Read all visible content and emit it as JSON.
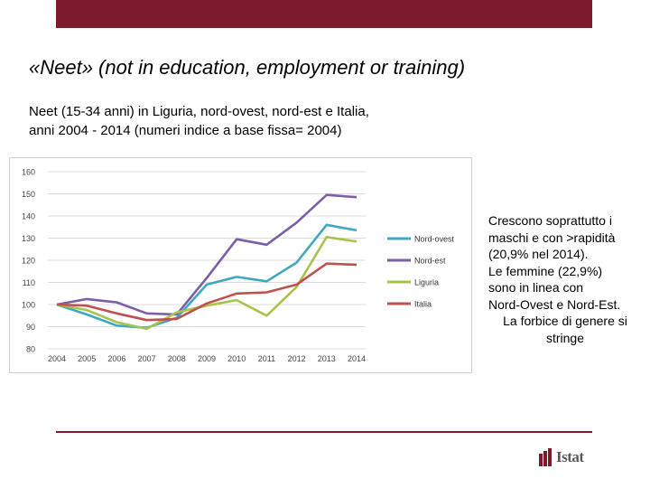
{
  "header": {
    "title": "«Neet» (not in education, employment or training)"
  },
  "subtitle": {
    "line1": "Neet (15-34 anni) in Liguria, nord-ovest, nord-est e Italia,",
    "line2": "anni 2004 - 2014 (numeri indice a base fissa= 2004)"
  },
  "side_note": {
    "lines": [
      "Crescono soprattutto i",
      "maschi e con >rapidità",
      "(20,9% nel 2014).",
      "Le femmine (22,9%)",
      "sono in linea con",
      "Nord-Ovest e Nord-Est.",
      "La forbice di genere si",
      "stringe"
    ]
  },
  "logo": {
    "text": "Istat"
  },
  "colors": {
    "brand": "#7d1a2c"
  },
  "chart_data": {
    "type": "line",
    "categories": [
      "2004",
      "2005",
      "2006",
      "2007",
      "2008",
      "2009",
      "2010",
      "2011",
      "2012",
      "2013",
      "2014"
    ],
    "ylim": [
      80,
      160
    ],
    "yticks": [
      "80",
      "90",
      "100",
      "110",
      "120",
      "130",
      "140",
      "150",
      "160"
    ],
    "grid": true,
    "legend_position": "right",
    "series": [
      {
        "name": "Nord-ovest",
        "color": "#3fa7c1",
        "values": [
          100,
          95.5,
          90.5,
          89.5,
          94,
          109,
          112.5,
          110.5,
          119,
          136,
          133.5
        ]
      },
      {
        "name": "Nord-est",
        "color": "#7b5ea7",
        "values": [
          100,
          102.5,
          101,
          96,
          95.5,
          112,
          129.5,
          127,
          137,
          149.5,
          148.5
        ]
      },
      {
        "name": "Liguria",
        "color": "#a8c34b",
        "values": [
          100,
          97.5,
          92,
          89,
          96.5,
          99.5,
          102,
          95,
          108,
          130.5,
          128.5
        ]
      },
      {
        "name": "Italia",
        "color": "#c0504d",
        "values": [
          100,
          99.5,
          96,
          93,
          93.5,
          100.5,
          105,
          105.5,
          109,
          118.5,
          118
        ]
      }
    ]
  }
}
